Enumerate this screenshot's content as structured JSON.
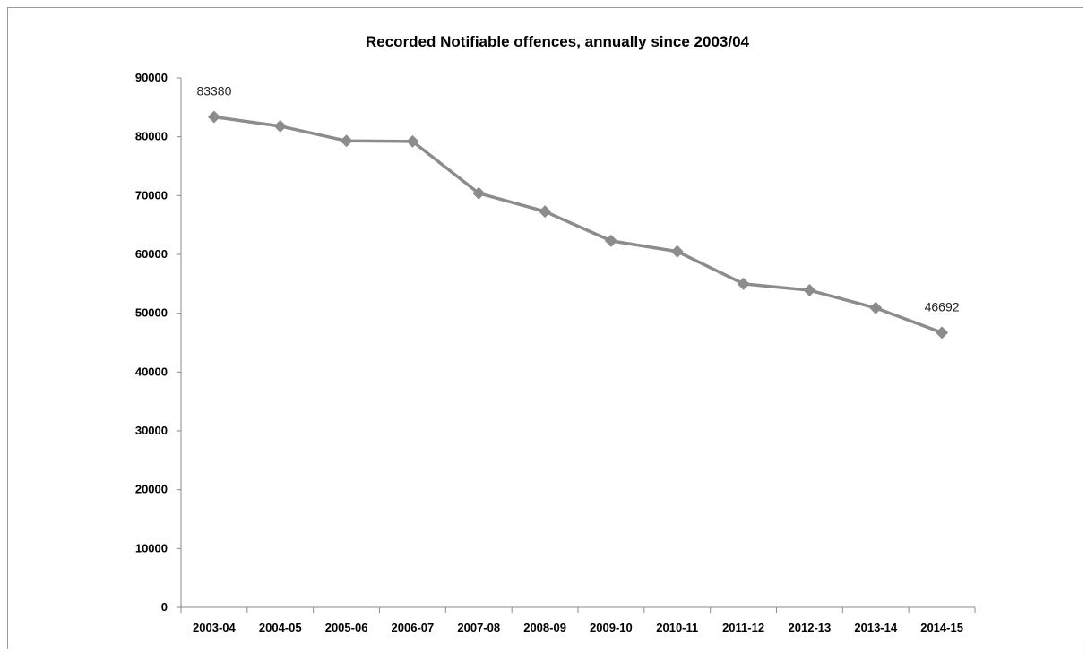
{
  "chart_data": {
    "type": "line",
    "title": "Recorded Notifiable offences, annually since 2003/04",
    "xlabel": "",
    "ylabel": "",
    "categories": [
      "2003-04",
      "2004-05",
      "2005-06",
      "2006-07",
      "2007-08",
      "2008-09",
      "2009-10",
      "2010-11",
      "2011-12",
      "2012-13",
      "2013-14",
      "2014-15"
    ],
    "values": [
      83380,
      81800,
      79300,
      79200,
      70400,
      67300,
      62300,
      60500,
      55000,
      53900,
      50900,
      46692
    ],
    "ylim": [
      0,
      90000
    ],
    "yticks": [
      "0",
      "10000",
      "20000",
      "30000",
      "40000",
      "50000",
      "60000",
      "70000",
      "80000",
      "90000"
    ],
    "data_labels": [
      {
        "index": 0,
        "text": "83380"
      },
      {
        "index": 11,
        "text": "46692"
      }
    ],
    "grid": false,
    "legend": "none",
    "line_color": "#8c8c8c",
    "marker": "diamond"
  }
}
